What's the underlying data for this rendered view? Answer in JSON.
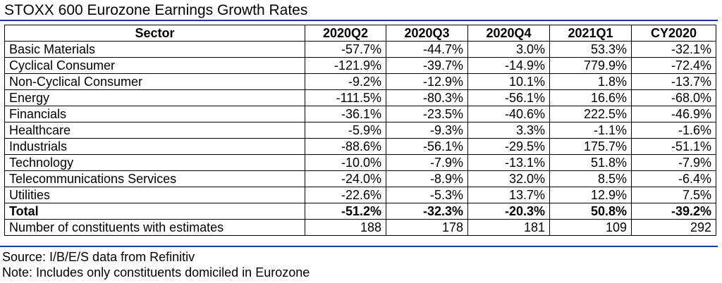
{
  "title": "STOXX 600 Eurozone Earnings Growth Rates",
  "headers": [
    "Sector",
    "2020Q2",
    "2020Q3",
    "2020Q4",
    "2021Q1",
    "CY2020"
  ],
  "rows": [
    {
      "sector": "Basic Materials",
      "values": [
        "-57.7%",
        "-44.7%",
        "3.0%",
        "53.3%",
        "-32.1%"
      ]
    },
    {
      "sector": "Cyclical Consumer",
      "values": [
        "-121.9%",
        "-39.7%",
        "-14.9%",
        "779.9%",
        "-72.4%"
      ]
    },
    {
      "sector": "Non-Cyclical Consumer",
      "values": [
        "-9.2%",
        "-12.9%",
        "10.1%",
        "1.8%",
        "-13.7%"
      ]
    },
    {
      "sector": "Energy",
      "values": [
        "-111.5%",
        "-80.3%",
        "-56.1%",
        "16.6%",
        "-68.0%"
      ]
    },
    {
      "sector": "Financials",
      "values": [
        "-36.1%",
        "-23.5%",
        "-40.6%",
        "222.5%",
        "-46.9%"
      ]
    },
    {
      "sector": "Healthcare",
      "values": [
        "-5.9%",
        "-9.3%",
        "3.3%",
        "-1.1%",
        "-1.6%"
      ]
    },
    {
      "sector": "Industrials",
      "values": [
        "-88.6%",
        "-56.1%",
        "-29.5%",
        "175.7%",
        "-51.1%"
      ]
    },
    {
      "sector": "Technology",
      "values": [
        "-10.0%",
        "-7.9%",
        "-13.1%",
        "51.8%",
        "-7.9%"
      ]
    },
    {
      "sector": "Telecommunications Services",
      "values": [
        "-24.0%",
        "-8.9%",
        "32.0%",
        "8.5%",
        "-6.4%"
      ]
    },
    {
      "sector": "Utilities",
      "values": [
        "-22.6%",
        "-5.3%",
        "13.7%",
        "12.9%",
        "7.5%"
      ]
    }
  ],
  "total": {
    "sector": "Total",
    "values": [
      "-51.2%",
      "-32.3%",
      "-20.3%",
      "50.8%",
      "-39.2%"
    ]
  },
  "constituents": {
    "sector": "Number of constituents with estimates",
    "values": [
      "188",
      "178",
      "181",
      "109",
      "292"
    ]
  },
  "source": "Source: I/B/E/S data from Refinitiv",
  "note": "Note: Includes only constituents domiciled in Eurozone",
  "colors": {
    "rule": "#1f3a9a",
    "text": "#000000",
    "background": "#ffffff"
  }
}
